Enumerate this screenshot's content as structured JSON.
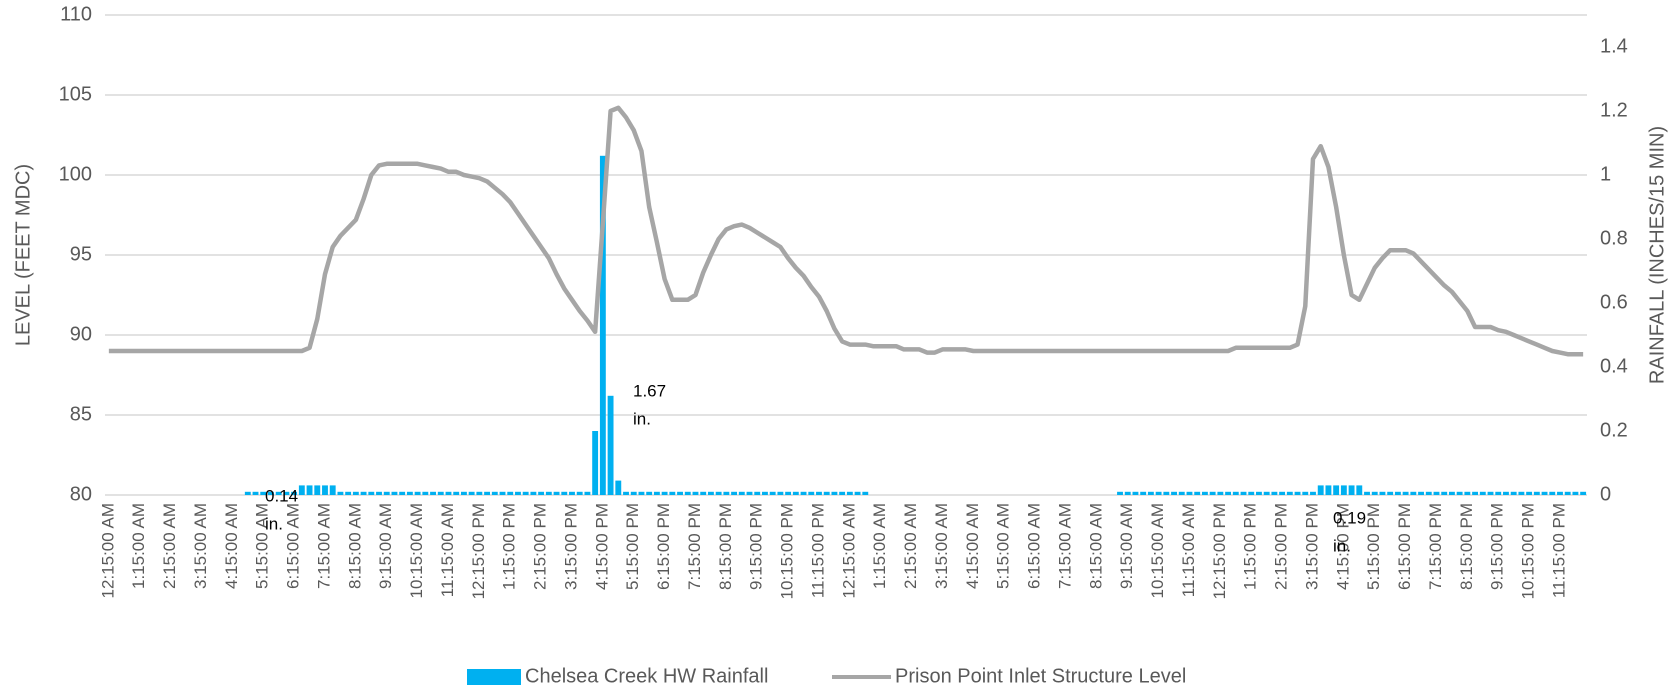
{
  "chart_data": {
    "type": "bar-line",
    "y_label": "LEVEL (FEET MDC)",
    "y2_label": "RAINFALL (INCHES/15 MIN)",
    "categories": [
      "12:15:00 AM",
      null,
      null,
      null,
      "1:15:00 AM",
      null,
      null,
      null,
      "2:15:00 AM",
      null,
      null,
      null,
      "3:15:00 AM",
      null,
      null,
      null,
      "4:15:00 AM",
      null,
      null,
      null,
      "5:15:00 AM",
      null,
      null,
      null,
      "6:15:00 AM",
      null,
      null,
      null,
      "7:15:00 AM",
      null,
      null,
      null,
      "8:15:00 AM",
      null,
      null,
      null,
      "9:15:00 AM",
      null,
      null,
      null,
      "10:15:00 AM",
      null,
      null,
      null,
      "11:15:00 AM",
      null,
      null,
      null,
      "12:15:00 PM",
      null,
      null,
      null,
      "1:15:00 PM",
      null,
      null,
      null,
      "2:15:00 PM",
      null,
      null,
      null,
      "3:15:00 PM",
      null,
      null,
      null,
      "4:15:00 PM",
      null,
      null,
      null,
      "5:15:00 PM",
      null,
      null,
      null,
      "6:15:00 PM",
      null,
      null,
      null,
      "7:15:00 PM",
      null,
      null,
      null,
      "8:15:00 PM",
      null,
      null,
      null,
      "9:15:00 PM",
      null,
      null,
      null,
      "10:15:00 PM",
      null,
      null,
      null,
      "11:15:00 PM",
      null,
      null,
      null,
      "12:15:00 AM",
      null,
      null,
      null,
      "1:15:00 AM",
      null,
      null,
      null,
      "2:15:00 AM",
      null,
      null,
      null,
      "3:15:00 AM",
      null,
      null,
      null,
      "4:15:00 AM",
      null,
      null,
      null,
      "5:15:00 AM",
      null,
      null,
      null,
      "6:15:00 AM",
      null,
      null,
      null,
      "7:15:00 AM",
      null,
      null,
      null,
      "8:15:00 AM",
      null,
      null,
      null,
      "9:15:00 AM",
      null,
      null,
      null,
      "10:15:00 AM",
      null,
      null,
      null,
      "11:15:00 AM",
      null,
      null,
      null,
      "12:15:00 PM",
      null,
      null,
      null,
      "1:15:00 PM",
      null,
      null,
      null,
      "2:15:00 PM",
      null,
      null,
      null,
      "3:15:00 PM",
      null,
      null,
      null,
      "4:15:00 PM",
      null,
      null,
      null,
      "5:15:00 PM",
      null,
      null,
      null,
      "6:15:00 PM",
      null,
      null,
      null,
      "7:15:00 PM",
      null,
      null,
      null,
      "8:15:00 PM",
      null,
      null,
      null,
      "9:15:00 PM",
      null,
      null,
      null,
      "10:15:00 PM",
      null,
      null,
      null,
      "11:15:00 PM",
      null,
      null,
      null
    ],
    "series": [
      {
        "name": "Chelsea Creek HW Rainfall",
        "type": "bar",
        "axis": "y2",
        "color": "#00b0f0",
        "values": [
          0,
          0,
          0,
          0,
          0,
          0,
          0,
          0,
          0,
          0,
          0,
          0,
          0,
          0,
          0,
          0,
          0,
          0,
          0.01,
          0.01,
          0.01,
          0.01,
          0.01,
          0.01,
          0.01,
          0.03,
          0.03,
          0.03,
          0.03,
          0.03,
          0.01,
          0.01,
          0.01,
          0.01,
          0.01,
          0.01,
          0.01,
          0.01,
          0.01,
          0.01,
          0.01,
          0.01,
          0.01,
          0.01,
          0.01,
          0.01,
          0.01,
          0.01,
          0.01,
          0.01,
          0.01,
          0.01,
          0.01,
          0.01,
          0.01,
          0.01,
          0.01,
          0.01,
          0.01,
          0.01,
          0.01,
          0.01,
          0.01,
          0.2,
          1.06,
          0.31,
          0.045,
          0.01,
          0.01,
          0.01,
          0.01,
          0.01,
          0.01,
          0.01,
          0.01,
          0.01,
          0.01,
          0.01,
          0.01,
          0.01,
          0.01,
          0.01,
          0.01,
          0.01,
          0.01,
          0.01,
          0.01,
          0.01,
          0.01,
          0.01,
          0.01,
          0.01,
          0.01,
          0.01,
          0.01,
          0.01,
          0.01,
          0.01,
          0.01,
          0,
          0,
          0,
          0,
          0,
          0,
          0,
          0,
          0,
          0,
          0,
          0,
          0,
          0,
          0,
          0,
          0,
          0,
          0,
          0,
          0,
          0,
          0,
          0,
          0,
          0,
          0,
          0,
          0,
          0,
          0,
          0,
          0.01,
          0.01,
          0.01,
          0.01,
          0.01,
          0.01,
          0.01,
          0.01,
          0.01,
          0.01,
          0.01,
          0.01,
          0.01,
          0.01,
          0.01,
          0.01,
          0.01,
          0.01,
          0.01,
          0.01,
          0.01,
          0.01,
          0.01,
          0.01,
          0.01,
          0.01,
          0.03,
          0.03,
          0.03,
          0.03,
          0.03,
          0.03,
          0.01,
          0.01,
          0.01,
          0.01,
          0.01,
          0.01,
          0.01,
          0.01,
          0.01,
          0.01,
          0.01,
          0.01,
          0.01,
          0.01,
          0.01,
          0.01,
          0.01,
          0.01,
          0.01,
          0.01,
          0.01,
          0.01,
          0.01,
          0.01,
          0.01,
          0.01,
          0.01,
          0.01,
          0.01
        ]
      },
      {
        "name": "Prison Point Inlet Structure Level",
        "type": "line",
        "axis": "y",
        "color": "#a6a6a6",
        "values": [
          89,
          89,
          89,
          89,
          89,
          89,
          89,
          89,
          89,
          89,
          89,
          89,
          89,
          89,
          89,
          89,
          89,
          89,
          89,
          89,
          89,
          89,
          89,
          89,
          89,
          89,
          89.2,
          91,
          93.8,
          95.5,
          96.2,
          96.7,
          97.2,
          98.5,
          100,
          100.6,
          100.7,
          100.7,
          100.7,
          100.7,
          100.7,
          100.6,
          100.5,
          100.4,
          100.2,
          100.2,
          100,
          99.9,
          99.8,
          99.6,
          99.2,
          98.8,
          98.3,
          97.6,
          96.9,
          96.2,
          95.5,
          94.8,
          93.8,
          92.9,
          92.2,
          91.5,
          90.9,
          90.2,
          97,
          104,
          104.2,
          103.6,
          102.8,
          101.5,
          98,
          95.8,
          93.5,
          92.2,
          92.2,
          92.2,
          92.5,
          93.9,
          95,
          96,
          96.6,
          96.8,
          96.9,
          96.7,
          96.4,
          96.1,
          95.8,
          95.5,
          94.8,
          94.2,
          93.7,
          93,
          92.4,
          91.5,
          90.4,
          89.6,
          89.4,
          89.4,
          89.4,
          89.3,
          89.3,
          89.3,
          89.3,
          89.1,
          89.1,
          89.1,
          88.9,
          88.9,
          89.1,
          89.1,
          89.1,
          89.1,
          89,
          89,
          89,
          89,
          89,
          89,
          89,
          89,
          89,
          89,
          89,
          89,
          89,
          89,
          89,
          89,
          89,
          89,
          89,
          89,
          89,
          89,
          89,
          89,
          89,
          89,
          89,
          89,
          89,
          89,
          89,
          89,
          89,
          89,
          89.2,
          89.2,
          89.2,
          89.2,
          89.2,
          89.2,
          89.2,
          89.2,
          89.4,
          91.8,
          101,
          101.8,
          100.5,
          98,
          95,
          92.5,
          92.2,
          93.2,
          94.2,
          94.8,
          95.3,
          95.3,
          95.3,
          95.1,
          94.6,
          94.1,
          93.6,
          93.1,
          92.7,
          92.1,
          91.5,
          90.5,
          90.5,
          90.5,
          90.3,
          90.2,
          90,
          89.8,
          89.6,
          89.4,
          89.2,
          89,
          88.9,
          88.8,
          88.8,
          88.8
        ]
      }
    ],
    "ylim": [
      80,
      110
    ],
    "yticks": [
      80,
      85,
      90,
      95,
      100,
      105,
      110
    ],
    "y2lim": [
      0,
      1.5
    ],
    "y2ticks": [
      0,
      0.2,
      0.4,
      0.6,
      0.8,
      1,
      1.2,
      1.4
    ],
    "grid": true,
    "legend": "bottom",
    "annotations": [
      {
        "lines": [
          "0.14",
          "in."
        ]
      },
      {
        "lines": [
          "1.67",
          "in."
        ]
      },
      {
        "lines": [
          "0.19",
          "in."
        ]
      }
    ]
  }
}
